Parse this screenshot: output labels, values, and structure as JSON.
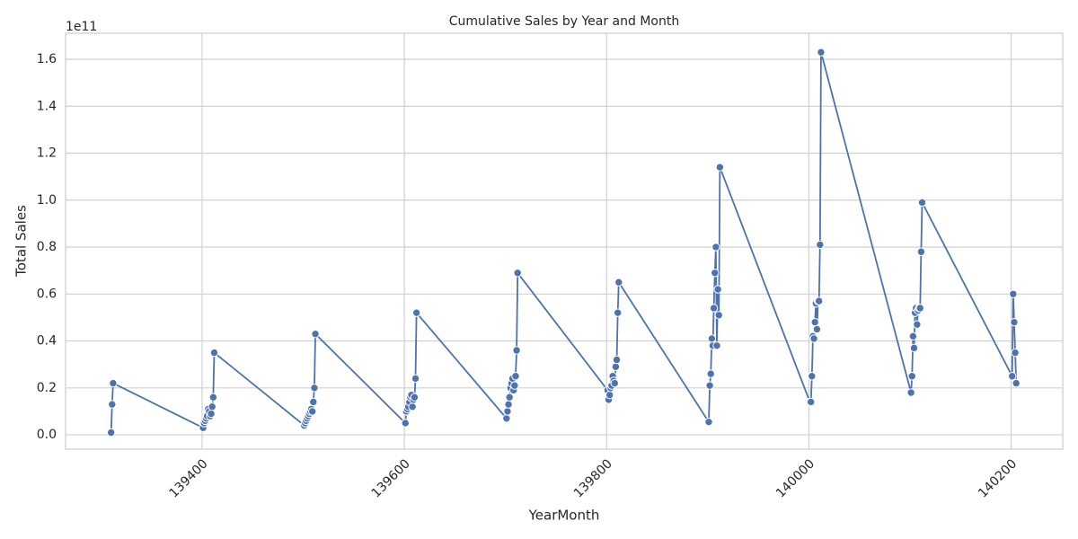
{
  "chart_data": {
    "type": "line",
    "title": "Cumulative Sales by Year and Month",
    "x_label": "YearMonth",
    "y_label": "Total Sales",
    "y_offset_label": "1e11",
    "grid": true,
    "marker": "o",
    "color": "#4c72b0",
    "xlim": [
      139265,
      140251
    ],
    "ylim": [
      -0.061,
      1.711
    ],
    "xticks": [
      139400,
      139600,
      139800,
      140000,
      140200
    ],
    "yticks": [
      {
        "value": 0,
        "label": "0.0"
      },
      0.2,
      0.4,
      0.6,
      0.8,
      {
        "value": 1,
        "label": "1.0"
      },
      1.2,
      1.4,
      1.6
    ],
    "x": [
      139310,
      139311,
      139312,
      139401,
      139402,
      139403,
      139404,
      139405,
      139406,
      139407,
      139408,
      139409,
      139410,
      139411,
      139412,
      139501,
      139502,
      139503,
      139504,
      139505,
      139506,
      139507,
      139508,
      139509,
      139510,
      139511,
      139512,
      139601,
      139602,
      139603,
      139604,
      139605,
      139606,
      139607,
      139608,
      139609,
      139610,
      139611,
      139612,
      139701,
      139702,
      139703,
      139704,
      139705,
      139706,
      139707,
      139708,
      139709,
      139710,
      139711,
      139712,
      139801,
      139802,
      139803,
      139804,
      139805,
      139806,
      139807,
      139808,
      139809,
      139810,
      139811,
      139812,
      139901,
      139902,
      139903,
      139904,
      139905,
      139906,
      139907,
      139908,
      139909,
      139910,
      139911,
      139912,
      140001,
      140002,
      140003,
      140004,
      140005,
      140006,
      140007,
      140008,
      140009,
      140010,
      140011,
      140012,
      140101,
      140102,
      140103,
      140104,
      140105,
      140106,
      140107,
      140108,
      140109,
      140110,
      140111,
      140112,
      140201,
      140202,
      140203,
      140204,
      140205
    ],
    "values": [
      0.01,
      0.13,
      0.22,
      0.03,
      0.05,
      0.06,
      0.07,
      0.08,
      0.11,
      0.1,
      0.08,
      0.09,
      0.12,
      0.16,
      0.35,
      0.04,
      0.05,
      0.06,
      0.07,
      0.08,
      0.09,
      0.1,
      0.11,
      0.1,
      0.14,
      0.2,
      0.43,
      0.05,
      0.1,
      0.11,
      0.12,
      0.14,
      0.16,
      0.17,
      0.12,
      0.15,
      0.16,
      0.24,
      0.52,
      0.07,
      0.1,
      0.13,
      0.16,
      0.2,
      0.22,
      0.24,
      0.19,
      0.21,
      0.25,
      0.36,
      0.69,
      0.19,
      0.15,
      0.17,
      0.2,
      0.21,
      0.25,
      0.23,
      0.22,
      0.29,
      0.32,
      0.52,
      0.65,
      0.055,
      0.21,
      0.26,
      0.41,
      0.38,
      0.54,
      0.69,
      0.8,
      0.38,
      0.62,
      0.51,
      1.14,
      0.14,
      0.14,
      0.25,
      0.42,
      0.41,
      0.48,
      0.56,
      0.45,
      0.57,
      0.57,
      0.81,
      1.63,
      0.18,
      0.25,
      0.42,
      0.37,
      0.52,
      0.54,
      0.47,
      0.53,
      0.54,
      0.54,
      0.78,
      0.99,
      0.25,
      0.6,
      0.48,
      0.35,
      0.22
    ]
  }
}
